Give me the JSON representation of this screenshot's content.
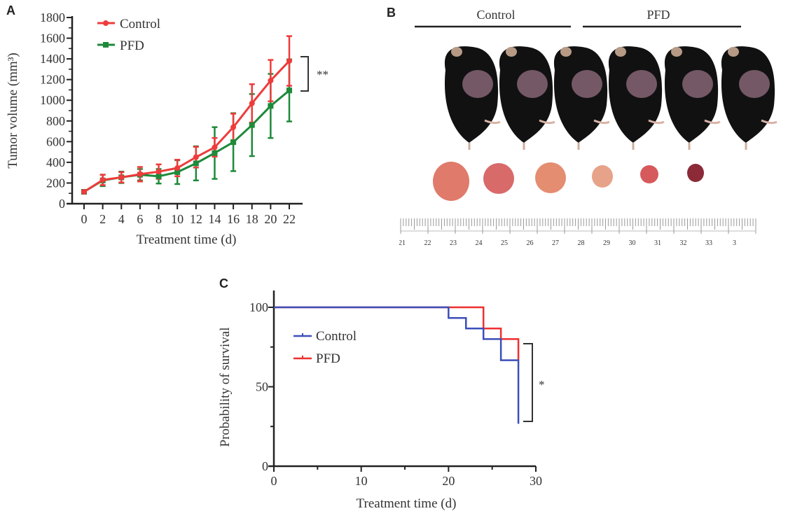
{
  "panels": {
    "a": {
      "letter": "A"
    },
    "b": {
      "letter": "B",
      "group_labels": [
        "Control",
        "PFD"
      ],
      "ruler_labels": [
        "21",
        "22",
        "23",
        "24",
        "25",
        "26",
        "27",
        "28",
        "29",
        "30",
        "31",
        "32",
        "33",
        "3"
      ]
    },
    "c": {
      "letter": "C"
    }
  },
  "chart_data": [
    {
      "type": "line",
      "panel": "A",
      "title": "",
      "xlabel": "Treatment time (d)",
      "ylabel": "Tumor volume (mm³)",
      "xlim": [
        0,
        22
      ],
      "ylim": [
        0,
        1800
      ],
      "x": [
        0,
        2,
        4,
        6,
        8,
        10,
        12,
        14,
        16,
        18,
        20,
        22
      ],
      "xticks": [
        "0",
        "2",
        "4",
        "6",
        "8",
        "10",
        "12",
        "14",
        "16",
        "18",
        "20",
        "22"
      ],
      "yticks": [
        "0",
        "200",
        "400",
        "600",
        "800",
        "1000",
        "1200",
        "1400",
        "1600",
        "1800"
      ],
      "legend_position": "top-left",
      "significance": "**",
      "series": [
        {
          "name": "Control",
          "color": "#ee3b3b",
          "marker": "circle",
          "values": [
            115,
            230,
            255,
            285,
            310,
            345,
            450,
            545,
            740,
            970,
            1190,
            1380
          ],
          "errors": [
            10,
            50,
            50,
            70,
            70,
            80,
            100,
            90,
            130,
            185,
            200,
            240
          ]
        },
        {
          "name": "PFD",
          "color": "#1e8a3a",
          "marker": "square",
          "values": [
            115,
            225,
            255,
            280,
            265,
            305,
            390,
            490,
            595,
            760,
            945,
            1095
          ],
          "errors": [
            10,
            55,
            55,
            55,
            70,
            115,
            165,
            250,
            280,
            300,
            310,
            300
          ]
        }
      ]
    },
    {
      "type": "line",
      "subtype": "step",
      "panel": "C",
      "title": "",
      "xlabel": "Treatment time (d)",
      "ylabel": "Probability of survival",
      "xlim": [
        0,
        30
      ],
      "ylim": [
        0,
        100
      ],
      "xticks": [
        "0",
        "10",
        "20",
        "30"
      ],
      "yticks": [
        "0",
        "50",
        "100"
      ],
      "legend_position": "left",
      "significance": "*",
      "series": [
        {
          "name": "Control",
          "color": "#3b4fb8",
          "steps": [
            [
              0,
              100
            ],
            [
              20,
              93.3
            ],
            [
              22,
              86.7
            ],
            [
              24,
              80
            ],
            [
              26,
              66.7
            ],
            [
              28,
              26.7
            ]
          ]
        },
        {
          "name": "PFD",
          "color": "#ee2f2f",
          "steps": [
            [
              0,
              100
            ],
            [
              24,
              86.7
            ],
            [
              26,
              80
            ],
            [
              28,
              66.7
            ]
          ]
        }
      ]
    }
  ]
}
